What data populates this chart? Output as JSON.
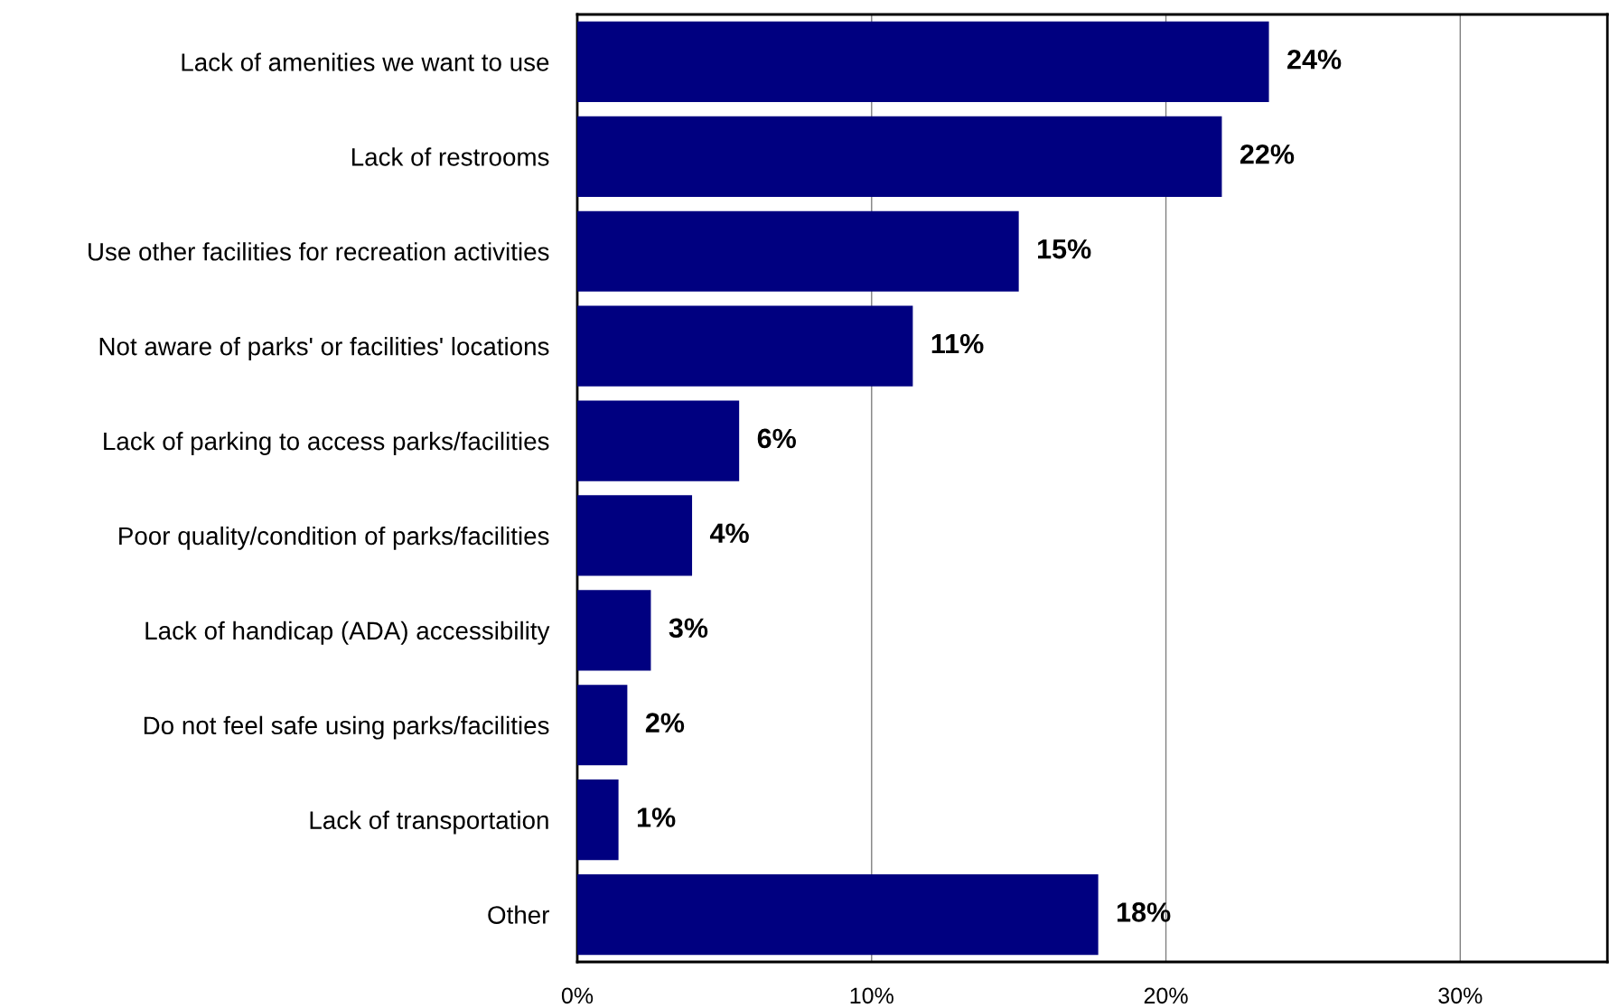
{
  "chart_data": {
    "type": "bar",
    "orientation": "horizontal",
    "categories": [
      "Lack of amenities we want to use",
      "Lack of restrooms",
      "Use other facilities for recreation activities",
      "Not aware of parks' or facilities' locations",
      "Lack of parking to access parks/facilities",
      "Poor quality/condition of parks/facilities",
      "Lack of handicap (ADA) accessibility",
      "Do not feel safe using parks/facilities",
      "Lack of transportation",
      "Other"
    ],
    "values": [
      23.5,
      21.9,
      15.0,
      11.4,
      5.5,
      3.9,
      2.5,
      1.7,
      1.4,
      17.7
    ],
    "value_labels": [
      "24%",
      "22%",
      "15%",
      "11%",
      "6%",
      "4%",
      "3%",
      "2%",
      "1%",
      "18%"
    ],
    "color": "#000080",
    "xlim": [
      0,
      35
    ],
    "xticks": [
      {
        "value": 0,
        "label": "0%"
      },
      {
        "value": 10,
        "label": "10%"
      },
      {
        "value": 20,
        "label": "20%"
      },
      {
        "value": 30,
        "label": "30%"
      }
    ],
    "grid": "x",
    "legend": false
  }
}
